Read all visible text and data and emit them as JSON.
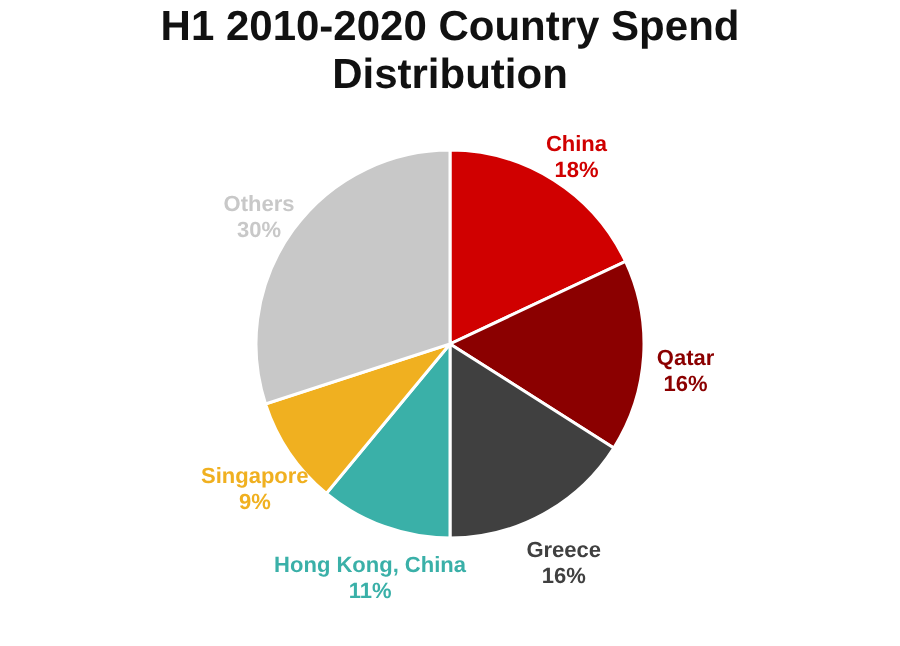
{
  "chart_data": {
    "type": "pie",
    "title": "H1 2010-2020 Country Spend Distribution",
    "categories": [
      "China",
      "Qatar",
      "Greece",
      "Hong Kong, China",
      "Singapore",
      "Others"
    ],
    "values": [
      18,
      16,
      16,
      11,
      9,
      30
    ],
    "value_labels": [
      "18%",
      "16%",
      "16%",
      "11%",
      "9%",
      "30%"
    ],
    "colors": [
      "#d00000",
      "#8b0000",
      "#404040",
      "#3ab0a8",
      "#f0b020",
      "#c8c8c8"
    ]
  }
}
